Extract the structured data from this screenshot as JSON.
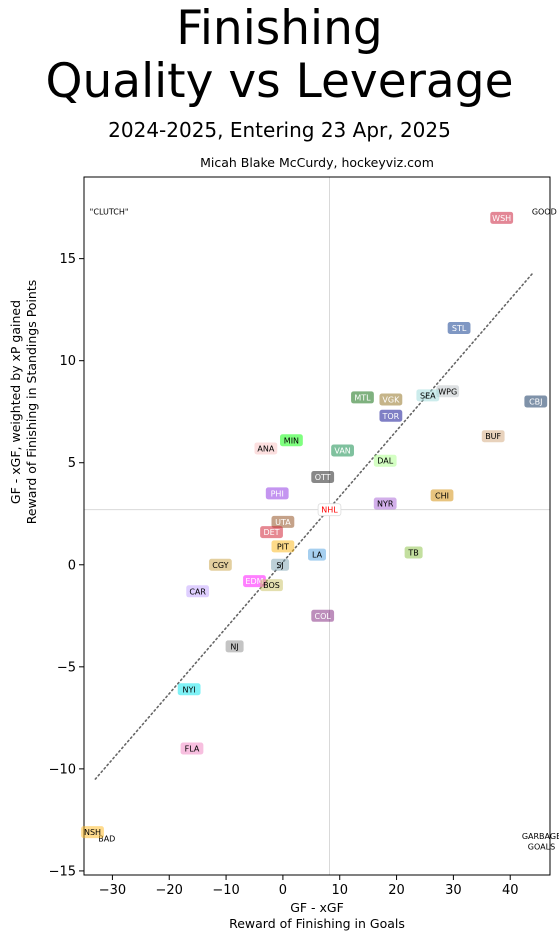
{
  "header": {
    "title_line1": "Finishing",
    "title_line2": "Quality vs Leverage",
    "subtitle": "2024-2025, Entering 23 Apr, 2025",
    "author": "Micah Blake McCurdy, hockeyviz.com"
  },
  "chart_data": {
    "type": "scatter",
    "title": "Finishing Quality vs Leverage",
    "subtitle": "2024-2025, Entering 23 Apr, 2025",
    "xlabel_line1": "GF - xGF",
    "xlabel_line2": "Reward of Finishing in Goals",
    "ylabel_line1": "GF - xGF, weighted by xP gained",
    "ylabel_line2": "Reward of Finishing in Standings Points",
    "xlim": [
      -35,
      47
    ],
    "ylim": [
      -15.2,
      19
    ],
    "xticks": [
      -30,
      -20,
      -10,
      0,
      10,
      20,
      30,
      40
    ],
    "yticks": [
      -15,
      -10,
      -5,
      0,
      5,
      10,
      15
    ],
    "grid": false,
    "reference_lines": {
      "x": 8.2,
      "y": 2.7
    },
    "trend_line": {
      "x": [
        -33,
        44
      ],
      "y": [
        -10.5,
        14.3
      ],
      "color": "#666666",
      "style": "dotted"
    },
    "corner_labels": [
      {
        "text": "\"CLUTCH\"",
        "x": -34,
        "y": 17.3
      },
      {
        "text": "GOOD",
        "x": 43.8,
        "y": 17.3
      },
      {
        "text": "BAD",
        "x": -32.5,
        "y": -13.4
      },
      {
        "text": "GARBAGE",
        "x": 45.5,
        "y": -13.3
      },
      {
        "text": "GOALS",
        "x": 45.5,
        "y": -13.8
      }
    ],
    "points": [
      {
        "team": "WSH",
        "x": 38.5,
        "y": 17.0,
        "color": "#c8102e"
      },
      {
        "team": "STL",
        "x": 31.0,
        "y": 11.6,
        "color": "#002f87"
      },
      {
        "team": "CBJ",
        "x": 44.5,
        "y": 8.0,
        "color": "#002654"
      },
      {
        "team": "WPG",
        "x": 29.0,
        "y": 8.5,
        "color": "#bcc1c6"
      },
      {
        "team": "SEA",
        "x": 25.5,
        "y": 8.3,
        "color": "#99d9d9"
      },
      {
        "team": "MTL",
        "x": 14.0,
        "y": 8.2,
        "color": "#006400"
      },
      {
        "team": "VGK",
        "x": 19.0,
        "y": 8.1,
        "color": "#8b6914"
      },
      {
        "team": "TOR",
        "x": 19.0,
        "y": 7.3,
        "color": "#00008b"
      },
      {
        "team": "BUF",
        "x": 37.0,
        "y": 6.3,
        "color": "#d2a679"
      },
      {
        "team": "MIN",
        "x": 1.5,
        "y": 6.1,
        "color": "#00ff00"
      },
      {
        "team": "ANA",
        "x": -3.0,
        "y": 5.7,
        "color": "#f9c0c0"
      },
      {
        "team": "VAN",
        "x": 10.5,
        "y": 5.6,
        "color": "#00843d"
      },
      {
        "team": "DAL",
        "x": 18.0,
        "y": 5.1,
        "color": "#aaff88"
      },
      {
        "team": "OTT",
        "x": 7.0,
        "y": 4.3,
        "color": "#111111"
      },
      {
        "team": "PHI",
        "x": -1.0,
        "y": 3.5,
        "color": "#8a2be2"
      },
      {
        "team": "CHI",
        "x": 28.0,
        "y": 3.4,
        "color": "#d18a00"
      },
      {
        "team": "NYR",
        "x": 18.0,
        "y": 3.0,
        "color": "#a65fd6"
      },
      {
        "team": "NHL",
        "x": 8.2,
        "y": 2.7,
        "color": "#ffffff"
      },
      {
        "team": "UTA",
        "x": 0.0,
        "y": 2.1,
        "color": "#8b4513"
      },
      {
        "team": "DET",
        "x": -2.0,
        "y": 1.6,
        "color": "#ce1126"
      },
      {
        "team": "PIT",
        "x": 0.0,
        "y": 0.9,
        "color": "#fcb514"
      },
      {
        "team": "LA",
        "x": 6.0,
        "y": 0.5,
        "color": "#4d9fe0"
      },
      {
        "team": "TB",
        "x": 23.0,
        "y": 0.6,
        "color": "#88c040"
      },
      {
        "team": "CGY",
        "x": -11.0,
        "y": 0.0,
        "color": "#c8a040"
      },
      {
        "team": "SJ",
        "x": -0.5,
        "y": 0.0,
        "color": "#7aa0b0"
      },
      {
        "team": "EDM",
        "x": -5.0,
        "y": -0.8,
        "color": "#ff00ff"
      },
      {
        "team": "BOS",
        "x": -2.0,
        "y": -1.0,
        "color": "#c8c060"
      },
      {
        "team": "CAR",
        "x": -15.0,
        "y": -1.3,
        "color": "#c0a0ff"
      },
      {
        "team": "COL",
        "x": 7.0,
        "y": -2.5,
        "color": "#7b1e7a"
      },
      {
        "team": "NJ",
        "x": -8.5,
        "y": -4.0,
        "color": "#8a8a8a"
      },
      {
        "team": "NYI",
        "x": -16.5,
        "y": -6.1,
        "color": "#00e5ee"
      },
      {
        "team": "FLA",
        "x": -16.0,
        "y": -9.0,
        "color": "#f080c0"
      },
      {
        "team": "NSH",
        "x": -33.5,
        "y": -13.1,
        "color": "#ffb81c"
      }
    ]
  }
}
